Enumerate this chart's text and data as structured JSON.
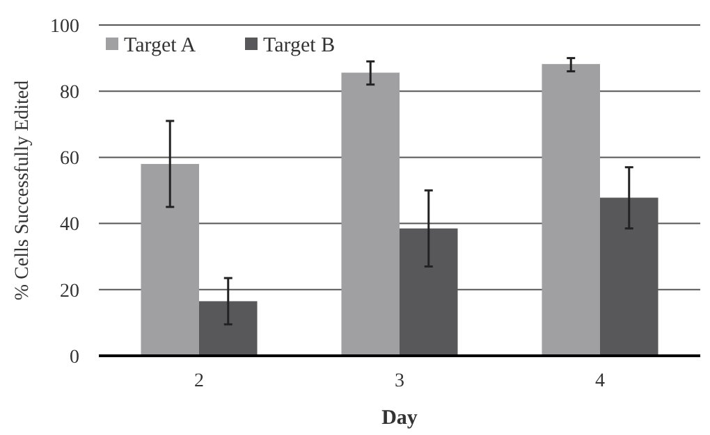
{
  "chart_data": {
    "type": "bar",
    "xlabel": "Day",
    "ylabel": "% Cells Successfully Edited",
    "categories": [
      "2",
      "3",
      "4"
    ],
    "series": [
      {
        "name": "Target A",
        "color": "#a0a0a3",
        "values": [
          58,
          85.6,
          88.2
        ],
        "errors": [
          [
            45,
            71
          ],
          [
            82,
            89
          ],
          [
            86,
            90
          ]
        ]
      },
      {
        "name": "Target B",
        "color": "#58585a",
        "values": [
          16.5,
          38.5,
          47.8
        ],
        "errors": [
          [
            9.5,
            23.5
          ],
          [
            27,
            50
          ],
          [
            38.5,
            57
          ]
        ]
      }
    ],
    "ylim": [
      0,
      100
    ],
    "yticks": [
      0,
      20,
      40,
      60,
      80,
      100
    ],
    "grid": "y",
    "legend": "top left"
  }
}
